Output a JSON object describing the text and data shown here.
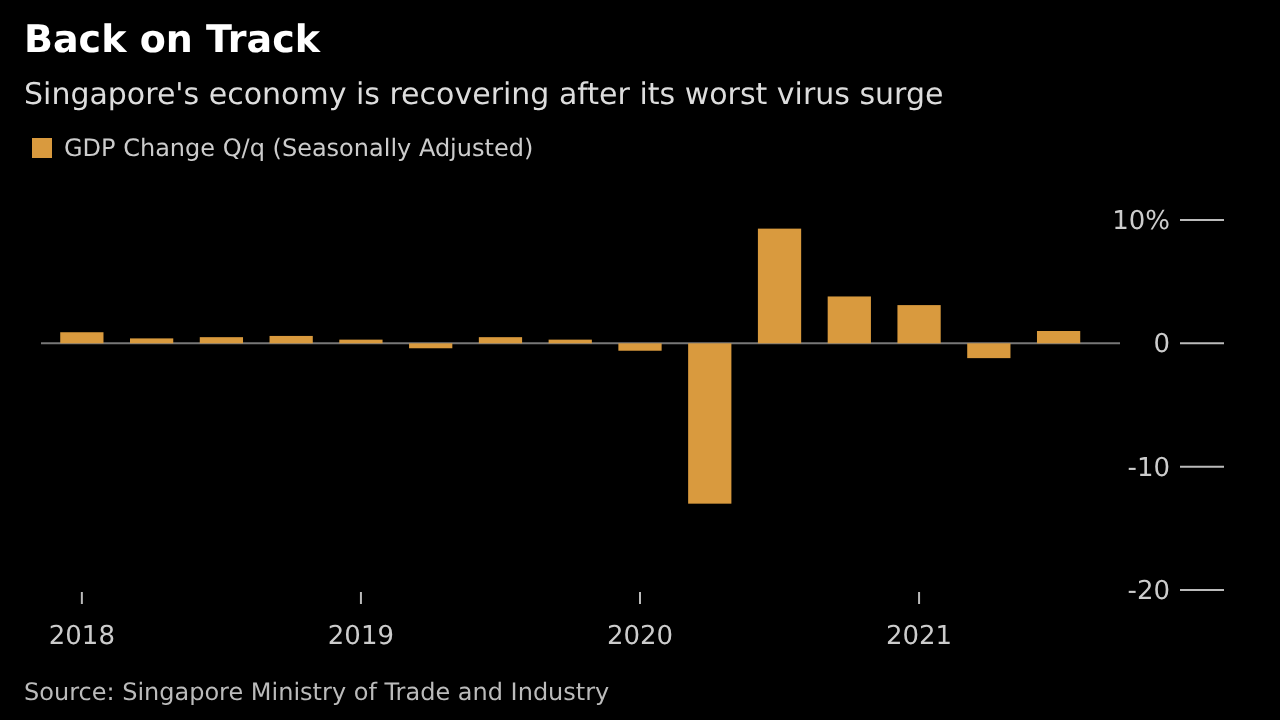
{
  "chart_data": {
    "type": "bar",
    "title": "Back on Track",
    "subtitle": "Singapore's economy is recovering after its worst virus surge",
    "x": [
      2018,
      2018.25,
      2018.5,
      2018.75,
      2019,
      2019.25,
      2019.5,
      2019.75,
      2020,
      2020.25,
      2020.5,
      2020.75,
      2021,
      2021.25,
      2021.5
    ],
    "series": [
      {
        "name": "GDP Change Q/q (Seasonally Adjusted)",
        "color": "#d99a3e",
        "values": [
          0.9,
          0.4,
          0.5,
          0.6,
          0.3,
          -0.4,
          0.5,
          0.3,
          -0.6,
          -13,
          9.3,
          3.8,
          3.1,
          -1.2,
          1.0
        ]
      }
    ],
    "xlim": [
      2017.85,
      2021.72
    ],
    "xticks": [
      2018,
      2019,
      2020,
      2021
    ],
    "ylim": [
      -20,
      10
    ],
    "ref_lines": [
      {
        "axis": "y",
        "value": 0,
        "color": "#777777"
      }
    ],
    "yticks": [
      {
        "value": 10,
        "label": "10%"
      },
      0,
      -10,
      -20
    ],
    "grid": false,
    "legend": "top left",
    "annotations": [
      "Source: Singapore Ministry of Trade and Industry"
    ]
  }
}
